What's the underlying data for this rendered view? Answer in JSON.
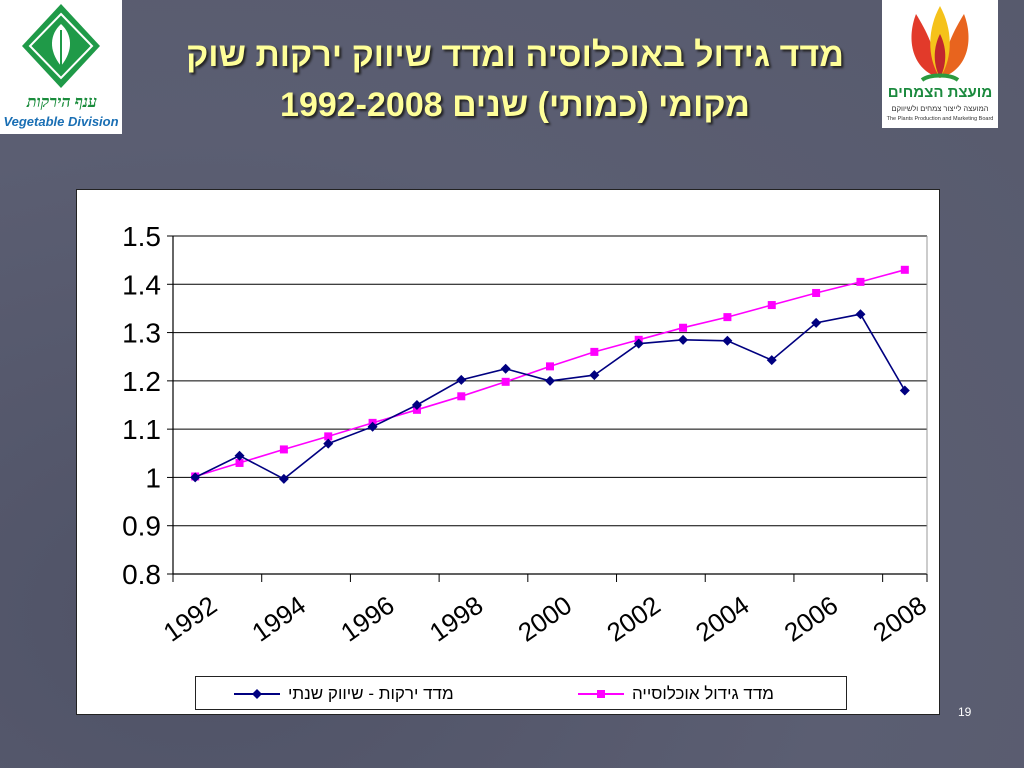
{
  "slide": {
    "title_line1": "מדד גידול באוכלוסיה ומדד שיווק ירקות שוק",
    "title_line2": "מקומי (כמותי) שנים 1992-2008",
    "page_number": "19"
  },
  "logos": {
    "left": {
      "name_he": "ענף הירקות",
      "name_en": "Vegetable Division"
    },
    "right": {
      "name_he": "מועצת הצמחים",
      "subtitle_he": "המועצה לייצור צמחים ולשיווקם",
      "subtitle_en": "The Plants Production and Marketing Board"
    }
  },
  "colors": {
    "background": "#5a5d70",
    "title": "#ffff99",
    "series_vegetables": "#000080",
    "series_population": "#ff00ff"
  },
  "chart_data": {
    "type": "line",
    "title": "",
    "xlabel": "",
    "ylabel": "",
    "x": [
      1992,
      1993,
      1994,
      1995,
      1996,
      1997,
      1998,
      1999,
      2000,
      2001,
      2002,
      2003,
      2004,
      2005,
      2006,
      2007,
      2008
    ],
    "x_tick_labels": [
      "1992",
      "1994",
      "1996",
      "1998",
      "2000",
      "2002",
      "2004",
      "2006",
      "2008"
    ],
    "y_tick_labels": [
      "1.5",
      "1.4",
      "1.3",
      "1.2",
      "1.1",
      "1",
      "0.9",
      "0.8"
    ],
    "ylim": [
      0.8,
      1.5
    ],
    "grid": true,
    "legend_position": "bottom",
    "series": [
      {
        "name": "מדד ירקות - שיווק שנתי",
        "marker": "diamond",
        "color": "#000080",
        "values": [
          1.0,
          1.045,
          0.997,
          1.07,
          1.105,
          1.15,
          1.202,
          1.225,
          1.2,
          1.212,
          1.277,
          1.285,
          1.283,
          1.243,
          1.32,
          1.338,
          1.18
        ]
      },
      {
        "name": "מדד גידול אוכלוסייה",
        "marker": "square",
        "color": "#ff00ff",
        "values": [
          1.002,
          1.03,
          1.058,
          1.085,
          1.113,
          1.14,
          1.168,
          1.198,
          1.23,
          1.26,
          1.285,
          1.31,
          1.332,
          1.357,
          1.382,
          1.405,
          1.43
        ]
      }
    ]
  }
}
